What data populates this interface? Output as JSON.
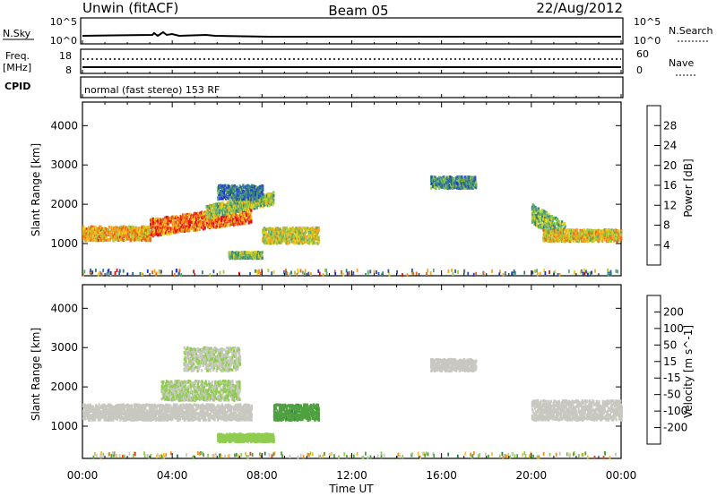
{
  "header": {
    "station": "Unwin (fitACF)",
    "beam": "Beam 05",
    "date": "22/Aug/2012"
  },
  "strip": {
    "nsky_label": "N.Sky",
    "nsky_ticks": [
      "10^5",
      "10^0"
    ],
    "nsearch_label": "N.Search",
    "nsearch_ticks": [
      "10^5",
      "10^0"
    ],
    "freq_label": "Freq.",
    "freq_unit": "[MHz]",
    "freq_ticks": [
      "18",
      "8"
    ],
    "nave_label": "Nave",
    "nave_ticks": [
      "60",
      "0"
    ],
    "cpid_label": "CPID",
    "cpid_text": "normal (fast stereo) 153 RF"
  },
  "chart_data": [
    {
      "type": "heatmap",
      "name_printed": "",
      "xlabel": "Time UT",
      "ylabel": "Slant Range [km]",
      "xlim_hours": [
        0,
        24
      ],
      "x_ticks": [
        "00:00",
        "04:00",
        "08:00",
        "12:00",
        "16:00",
        "20:00",
        "00:00"
      ],
      "ylim": [
        180,
        4600
      ],
      "y_ticks": [
        1000,
        2000,
        3000,
        4000
      ],
      "colorbar": {
        "label": "Power [dB]",
        "range": [
          0,
          32
        ],
        "ticks": [
          4,
          8,
          12,
          16,
          20,
          24,
          28
        ],
        "colors": [
          "#2030d8",
          "#2a56b8",
          "#2f7f88",
          "#5aa96a",
          "#9ccc3c",
          "#e8d020",
          "#f7a020",
          "#f06018",
          "#e01010"
        ]
      },
      "echo_regions": [
        {
          "t_start": 0.0,
          "t_end": 3.0,
          "range_center": 1250,
          "range_halfwidth": 180,
          "level": 22
        },
        {
          "t_start": 3.0,
          "t_end": 7.5,
          "range_center": 1400,
          "range_halfwidth": 220,
          "level": 26
        },
        {
          "t_start": 5.5,
          "t_end": 8.5,
          "range_center": 1800,
          "range_halfwidth": 160,
          "level": 16
        },
        {
          "t_start": 6.0,
          "t_end": 8.0,
          "range_center": 2300,
          "range_halfwidth": 180,
          "level": 8
        },
        {
          "t_start": 6.5,
          "t_end": 8.0,
          "range_center": 700,
          "range_halfwidth": 80,
          "level": 14
        },
        {
          "t_start": 8.0,
          "t_end": 10.5,
          "range_center": 1200,
          "range_halfwidth": 200,
          "level": 18
        },
        {
          "t_start": 15.5,
          "t_end": 17.5,
          "range_center": 2550,
          "range_halfwidth": 150,
          "level": 10
        },
        {
          "t_start": 20.0,
          "t_end": 21.5,
          "range_center": 1750,
          "range_halfwidth": 250,
          "level": 14
        },
        {
          "t_start": 20.5,
          "t_end": 24.0,
          "range_center": 1200,
          "range_halfwidth": 150,
          "level": 20
        }
      ]
    },
    {
      "type": "heatmap",
      "name_printed": "",
      "xlabel": "Time UT",
      "ylabel": "Slant Range [km]",
      "xlim_hours": [
        0,
        24
      ],
      "x_ticks": [
        "00:00",
        "04:00",
        "08:00",
        "12:00",
        "16:00",
        "20:00",
        "00:00"
      ],
      "ylim": [
        180,
        4600
      ],
      "y_ticks": [
        1000,
        2000,
        3000,
        4000
      ],
      "colorbar": {
        "label": "Velocity [m s^-1]",
        "range": [
          -250,
          250
        ],
        "ticks": [
          200,
          100,
          50,
          15,
          -15,
          -50,
          -100,
          -200
        ],
        "colors": [
          "#1a3ab0",
          "#2a7a50",
          "#4fa040",
          "#8fcc50",
          "#c8c8c0",
          "#f0c030",
          "#f08a20",
          "#f04010",
          "#e00000"
        ]
      },
      "echo_regions": [
        {
          "t_start": 0.0,
          "t_end": 7.5,
          "range_center": 1350,
          "range_halfwidth": 200,
          "level": 0
        },
        {
          "t_start": 3.5,
          "t_end": 7.0,
          "range_center": 1900,
          "range_halfwidth": 250,
          "level": -30
        },
        {
          "t_start": 4.5,
          "t_end": 7.0,
          "range_center": 2700,
          "range_halfwidth": 300,
          "level": -20
        },
        {
          "t_start": 6.0,
          "t_end": 8.5,
          "range_center": 700,
          "range_halfwidth": 100,
          "level": -60
        },
        {
          "t_start": 8.5,
          "t_end": 10.5,
          "range_center": 1350,
          "range_halfwidth": 200,
          "level": -120
        },
        {
          "t_start": 15.5,
          "t_end": 17.5,
          "range_center": 2550,
          "range_halfwidth": 150,
          "level": 0
        },
        {
          "t_start": 20.0,
          "t_end": 24.0,
          "range_center": 1400,
          "range_halfwidth": 250,
          "level": 0
        }
      ]
    }
  ]
}
